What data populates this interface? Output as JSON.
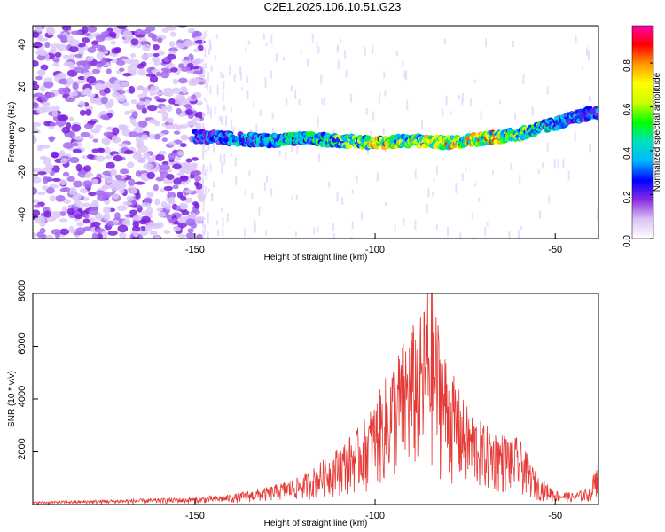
{
  "title": "C2E1.2025.106.10.51.G23",
  "colors": {
    "snr_line": "#e53935",
    "axis": "#000000",
    "background": "#ffffff"
  },
  "colormap": [
    "#ffffff",
    "#d9c2f5",
    "#8a2be2",
    "#0000ff",
    "#00b7ff",
    "#00e0c0",
    "#00ff00",
    "#c8ff00",
    "#ffff00",
    "#ff9900",
    "#ff0000",
    "#ff00aa"
  ],
  "chart_data": [
    {
      "type": "heatmap",
      "xlabel": "Height of straight line (km)",
      "ylabel": "Frequency (Hz)",
      "xlim": [
        -195,
        -38
      ],
      "ylim": [
        -50,
        50
      ],
      "xticks": [
        -150,
        -100,
        -50
      ],
      "xtick_labels": [
        "-150",
        "-100",
        "-50"
      ],
      "yticks": [
        -40,
        -20,
        0,
        20,
        40
      ],
      "ytick_labels": [
        "-40",
        "-20",
        "0",
        "20",
        "40"
      ],
      "colorbar": {
        "label": "Normalized spectral amplitude",
        "range": [
          0.0,
          0.97
        ],
        "ticks": [
          0.0,
          0.2,
          0.4,
          0.6,
          0.8
        ],
        "tick_labels": [
          "0.0",
          "0.2",
          "0.4",
          "0.6",
          "0.8"
        ]
      },
      "signal_ridge": {
        "x": [
          -150,
          -140,
          -130,
          -120,
          -110,
          -100,
          -90,
          -80,
          -70,
          -60,
          -50,
          -40
        ],
        "frequency": [
          -2,
          -3,
          -4,
          -3,
          -4,
          -5,
          -4,
          -5,
          -3,
          -1,
          4,
          9
        ],
        "peak_amplitude": [
          0.3,
          0.4,
          0.45,
          0.5,
          0.6,
          0.75,
          0.7,
          0.8,
          0.9,
          0.7,
          0.4,
          0.35
        ]
      },
      "noise_region_x": [
        -195,
        -148
      ]
    },
    {
      "type": "line",
      "xlabel": "Height of straight line (km)",
      "ylabel": "SNR (10 * v/v)",
      "xlim": [
        -195,
        -38
      ],
      "ylim": [
        0,
        8000
      ],
      "xticks": [
        -150,
        -100,
        -50
      ],
      "xtick_labels": [
        "-150",
        "-100",
        "-50"
      ],
      "yticks": [
        2000,
        4000,
        6000,
        8000
      ],
      "ytick_labels": [
        "2000",
        "4000",
        "6000",
        "8000"
      ],
      "series": [
        {
          "envelope_x": [
            -195,
            -170,
            -150,
            -140,
            -130,
            -120,
            -112,
            -105,
            -100,
            -95,
            -90,
            -87,
            -85,
            -80,
            -75,
            -70,
            -65,
            -60,
            -55,
            -50,
            -45,
            -40,
            -38
          ],
          "envelope_y": [
            100,
            180,
            250,
            350,
            600,
            1000,
            1800,
            2600,
            3600,
            5000,
            6200,
            6600,
            7900,
            5000,
            3500,
            2800,
            2500,
            2300,
            1000,
            500,
            400,
            600,
            2100
          ]
        }
      ]
    }
  ]
}
